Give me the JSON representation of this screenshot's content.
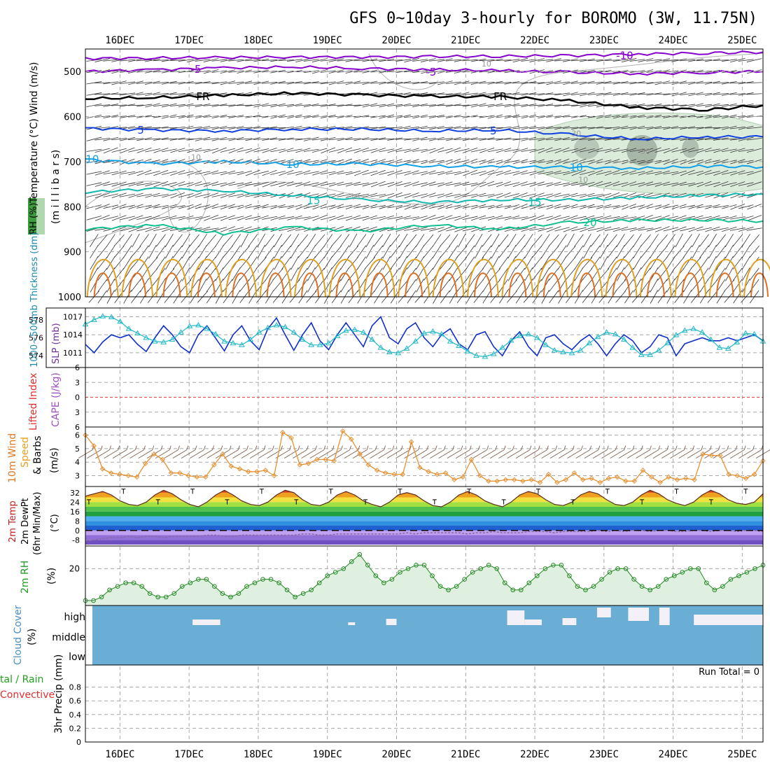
{
  "title": "GFS 0~10day 3-hourly for BOROMO (3W, 11.75N)",
  "colors": {
    "frame": "#000000",
    "grid": "#a8a8a8",
    "temp_neg": "#8800cc",
    "temp_cold": "#1040e0",
    "temp_10": "#10a0e8",
    "temp_15": "#10b8b0",
    "temp_20": "#10c090",
    "warm_contour": "#e0a020",
    "hot_contour": "#e07020",
    "rh_contour": "#b0b0b0",
    "rh_fill": "#d8ead8",
    "slp": "#1030c8",
    "thickness": "#20b8c8",
    "wind_speed": "#e89030",
    "barb": "#806050",
    "rh2m_line": "#208820",
    "rh2m_fill": "#e0f0e0",
    "cloud": "#6aaed6",
    "cloud_gap": "#f4f0f8",
    "li_zero": "#e04040"
  },
  "chart_data": [
    {
      "type": "line",
      "panel": "upper-air",
      "x": [
        "16DEC",
        "17DEC",
        "18DEC",
        "19DEC",
        "20DEC",
        "21DEC",
        "22DEC",
        "23DEC",
        "24DEC",
        "25DEC"
      ],
      "ylabel": "Temperature (°C) Wind (m/s)",
      "yunit": "(m i l l i b a r s)",
      "ylabel_rh": "RH (%)",
      "ylim": [
        1000,
        450
      ],
      "yticks": [
        "500",
        "600",
        "700",
        "800",
        "900",
        "1000"
      ],
      "contour_labels": [
        "-5",
        "-5",
        "-10",
        "FR",
        "FR",
        "-5",
        "-5",
        "10",
        "10",
        "10",
        "15",
        "15",
        "20",
        "10",
        "10",
        "30",
        "50",
        "10"
      ],
      "series": [
        {
          "name": "-10",
          "x": [
            15.5,
            16.5,
            17.5,
            18.5,
            19.5,
            20.5,
            21.5,
            22.5,
            23.5,
            24.5,
            25.3
          ],
          "values": [
            471,
            470,
            469,
            468,
            468,
            467,
            466,
            465,
            461,
            459,
            457
          ]
        },
        {
          "name": "-5",
          "x": [
            15.5,
            16.5,
            17.5,
            18.5,
            19.5,
            20.5,
            21.5,
            22.5,
            23.5,
            24.5,
            25.3
          ],
          "values": [
            500,
            496,
            492,
            490,
            493,
            496,
            498,
            502,
            505,
            502,
            500
          ]
        },
        {
          "name": "FR",
          "x": [
            15.5,
            16.5,
            17.5,
            18.5,
            19.5,
            20.5,
            21.5,
            22.5,
            23.5,
            24.5,
            25.3
          ],
          "values": [
            560,
            558,
            553,
            548,
            552,
            555,
            556,
            565,
            580,
            585,
            575
          ]
        },
        {
          "name": "5",
          "x": [
            15.5,
            16.5,
            17.5,
            18.5,
            19.5,
            20.5,
            21.5,
            22.5,
            23.5,
            24.5,
            25.3
          ],
          "values": [
            626,
            630,
            632,
            628,
            628,
            632,
            630,
            640,
            650,
            645,
            645
          ]
        },
        {
          "name": "10",
          "x": [
            15.5,
            16.5,
            17.5,
            18.5,
            19.5,
            20.5,
            21.5,
            22.5,
            23.5,
            24.5,
            25.3
          ],
          "values": [
            695,
            705,
            700,
            706,
            705,
            710,
            712,
            712,
            715,
            710,
            712
          ]
        },
        {
          "name": "15",
          "x": [
            15.5,
            16.5,
            17.5,
            18.5,
            19.5,
            20.5,
            21.5,
            22.5,
            23.5,
            24.5,
            25.3
          ],
          "values": [
            768,
            760,
            765,
            775,
            785,
            790,
            785,
            785,
            780,
            775,
            772
          ]
        },
        {
          "name": "20",
          "x": [
            15.5,
            16.5,
            17.5,
            18.5,
            19.5,
            20.5,
            21.5,
            22.5,
            23.5,
            24.5,
            25.3
          ],
          "values": [
            850,
            840,
            860,
            845,
            855,
            840,
            850,
            835,
            830,
            830,
            832
          ]
        }
      ]
    },
    {
      "type": "line",
      "panel": "slp-thickness",
      "ylabel_left": "1000~500mb Thickness (dm)",
      "ylabel_right": "SLP (mb)",
      "yticks_left": [
        "578",
        "576",
        "574"
      ],
      "yticks_right": [
        "1017",
        "1014",
        "1011"
      ],
      "series": [
        {
          "name": "SLP",
          "axis": "right",
          "ylim": [
            1009,
            1018
          ],
          "values": [
            1012.4,
            1011.0,
            1012.8,
            1014.0,
            1013.5,
            1014.0,
            1012.4,
            1011.2,
            1013.5,
            1015.5,
            1014.0,
            1012.0,
            1011.0,
            1014.0,
            1015.5,
            1013.4,
            1011.3,
            1014.0,
            1015.5,
            1013.0,
            1011.5,
            1015.0,
            1016.8,
            1014.0,
            1011.4,
            1014.0,
            1016.0,
            1013.0,
            1011.5,
            1014.0,
            1016.0,
            1014.0,
            1012.0,
            1015.5,
            1017.0,
            1013.5,
            1012.5,
            1015.0,
            1016.0,
            1013.5,
            1012.0,
            1014.0,
            1015.0,
            1012.5,
            1011.5,
            1014.0,
            1014.5,
            1012.0,
            1010.5,
            1013.0,
            1014.5,
            1012.0,
            1010.5,
            1013.5,
            1014.0,
            1012.5,
            1011.5,
            1013.0,
            1014.0,
            1012.5,
            1010.5,
            1012.5,
            1014.0,
            1013.0,
            1011.0,
            1012.0,
            1014.0,
            1013.5,
            1010.5,
            1012.5,
            1013.0,
            1013.5,
            1013.0,
            1013.0,
            1013.5,
            1013.0,
            1013.5,
            1014.0,
            1013.0
          ]
        },
        {
          "name": "Thickness",
          "axis": "left",
          "ylim": [
            573,
            579
          ],
          "values": [
            577.5,
            578.0,
            578.4,
            578.3,
            577.8,
            577.0,
            576.5,
            576.0,
            575.6,
            575.5,
            575.8,
            576.6,
            577.3,
            577.4,
            577.0,
            576.4,
            575.6,
            575.4,
            575.2,
            575.8,
            576.6,
            577.1,
            577.4,
            577.2,
            576.6,
            575.8,
            575.2,
            575.2,
            575.4,
            576.2,
            576.8,
            576.9,
            576.6,
            575.8,
            574.9,
            574.4,
            574.3,
            574.8,
            575.6,
            576.5,
            576.7,
            576.4,
            575.6,
            575.1,
            574.5,
            574.0,
            573.9,
            574.2,
            574.9,
            575.7,
            576.2,
            576.4,
            576.0,
            575.2,
            574.6,
            574.4,
            574.3,
            574.6,
            575.4,
            576.1,
            576.6,
            576.4,
            575.8,
            574.9,
            574.1,
            574.1,
            574.6,
            575.4,
            576.3,
            576.8,
            577.0,
            576.6,
            575.8,
            574.9,
            574.8,
            575.5,
            576.5,
            576.4,
            575.6
          ]
        }
      ]
    },
    {
      "type": "line",
      "panel": "cape-li",
      "ylabel_left": "Lifted Index",
      "ylabel_right": "CAPE (J/kg)",
      "yticks": [
        "6",
        "3",
        "0",
        "-3",
        "-6"
      ],
      "series": []
    },
    {
      "type": "line",
      "panel": "wind10m",
      "ylabel": "10m Wind Speed & Barbs (m/s)",
      "ylabel_left": "10m Wind",
      "ylabel_speed": "Speed",
      "ylabel_barbs": "& Barbs",
      "yunit": "(m/s)",
      "ylim": [
        2.2,
        6.6
      ],
      "yticks": [
        "6",
        "5",
        "4",
        "3"
      ],
      "series": [
        {
          "name": "Speed",
          "values": [
            6.0,
            5.2,
            3.5,
            3.2,
            3.1,
            3.0,
            2.9,
            3.9,
            4.6,
            4.2,
            3.2,
            3.2,
            3.0,
            2.9,
            2.9,
            3.8,
            4.6,
            3.7,
            3.5,
            3.3,
            3.3,
            3.4,
            3.0,
            6.2,
            5.8,
            3.8,
            3.9,
            4.2,
            4.2,
            4.1,
            6.3,
            5.7,
            4.6,
            3.8,
            3.4,
            3.2,
            3.1,
            3.1,
            5.5,
            3.6,
            3.3,
            3.1,
            3.2,
            2.7,
            2.9,
            4.2,
            3.0,
            2.6,
            2.6,
            2.7,
            2.7,
            2.6,
            2.7,
            2.5,
            3.1,
            2.5,
            2.7,
            3.2,
            2.7,
            2.8,
            2.5,
            2.8,
            2.9,
            2.6,
            2.6,
            3.4,
            2.9,
            2.5,
            2.9,
            2.7,
            2.8,
            2.7,
            4.6,
            4.5,
            4.5,
            3.1,
            3.0,
            2.8,
            3.1,
            4.1
          ]
        }
      ]
    },
    {
      "type": "area",
      "panel": "temp2m",
      "ylabel": "2m Temp 2m DewPt (6hr Min/Max) (°C)",
      "ylabel_temp": "2m Temp",
      "ylabel_dew": "2m DewPt",
      "ylabel_minmax": "(6hr Min/Max)",
      "yunit": "(°C)",
      "ylim": [
        -12,
        36
      ],
      "yticks": [
        "32",
        "24",
        "16",
        "8",
        "0",
        "-8"
      ],
      "series": [
        {
          "name": "2m Temp",
          "values": [
            29,
            31,
            33,
            30,
            25,
            22,
            21,
            24,
            30,
            34,
            31,
            26,
            22,
            20,
            24,
            30,
            34,
            30,
            25,
            22,
            21,
            24,
            30,
            34,
            32,
            26,
            22,
            21,
            24,
            30,
            33,
            30,
            25,
            22,
            20,
            24,
            30,
            32,
            30,
            25,
            21,
            20,
            24,
            30,
            33,
            30,
            25,
            22,
            20,
            24,
            30,
            33,
            31,
            26,
            22,
            21,
            24,
            30,
            33,
            31,
            26,
            22,
            21,
            24,
            30,
            34,
            31,
            26,
            23,
            21,
            24,
            30,
            34,
            31,
            26,
            23,
            22,
            24,
            31
          ]
        },
        {
          "name": "2m DewPt",
          "values": [
            -9,
            -8,
            -7,
            -6,
            -6,
            -5,
            -6,
            -5,
            -5,
            -6,
            -5,
            -5,
            -5,
            -5,
            -4,
            -4,
            -5,
            -5,
            -4,
            -4,
            -4,
            -4,
            -4,
            -4,
            -4,
            -3,
            -3,
            -4,
            -4,
            -3,
            -3,
            -3,
            -3,
            -3,
            -3,
            -3,
            -3,
            -2,
            -3,
            -2,
            -2,
            -2,
            -2,
            -2,
            -3,
            -2,
            -2,
            -1,
            -2,
            -2,
            -2,
            -1,
            -1,
            -1,
            -2,
            -1,
            -1,
            -1,
            -1,
            0,
            -1,
            0,
            -1,
            0,
            0,
            -1,
            0,
            0,
            -1,
            -1,
            0,
            0,
            -1,
            0,
            0,
            -1,
            0,
            0,
            -1
          ]
        }
      ]
    },
    {
      "type": "area",
      "panel": "rh2m",
      "ylabel": "2m RH",
      "yunit": "(%)",
      "ylim": [
        10,
        26
      ],
      "yticks": [
        "20"
      ],
      "series": [
        {
          "name": "2m RH",
          "values": [
            11,
            11,
            12,
            14,
            15,
            16,
            16,
            15,
            13,
            12,
            12,
            13,
            15,
            16,
            17,
            17,
            15,
            13,
            12,
            13,
            15,
            16,
            17,
            17,
            16,
            14,
            12,
            13,
            14,
            16,
            18,
            19,
            20,
            22,
            24,
            21,
            18,
            16,
            17,
            19,
            20,
            21,
            21,
            18,
            15,
            14,
            15,
            17,
            19,
            20,
            21,
            20,
            16,
            14,
            14,
            16,
            18,
            20,
            21,
            21,
            18,
            15,
            14,
            15,
            17,
            19,
            20,
            20,
            17,
            15,
            14,
            15,
            17,
            18,
            19,
            20,
            20,
            16,
            14,
            15,
            17,
            18,
            19,
            20,
            21
          ]
        }
      ]
    },
    {
      "type": "heatmap",
      "panel": "cloud-cover",
      "ylabel": "Cloud Cover",
      "yunit": "(%)",
      "categories": [
        "high",
        "middle",
        "low"
      ]
    },
    {
      "type": "bar",
      "panel": "precip",
      "ylabel": "3hr Precip (mm)",
      "ylabel_left": "tal / Rain",
      "ylabel_left2": "Convective",
      "ylim": [
        0,
        1
      ],
      "yticks": [
        "0.8",
        "0.6",
        "0.4",
        "0.2",
        "0"
      ],
      "annotation": "Run Total = 0",
      "values": []
    }
  ],
  "xaxis": {
    "labels": [
      "16DEC",
      "17DEC",
      "18DEC",
      "19DEC",
      "20DEC",
      "21DEC",
      "22DEC",
      "23DEC",
      "24DEC",
      "25DEC"
    ]
  }
}
